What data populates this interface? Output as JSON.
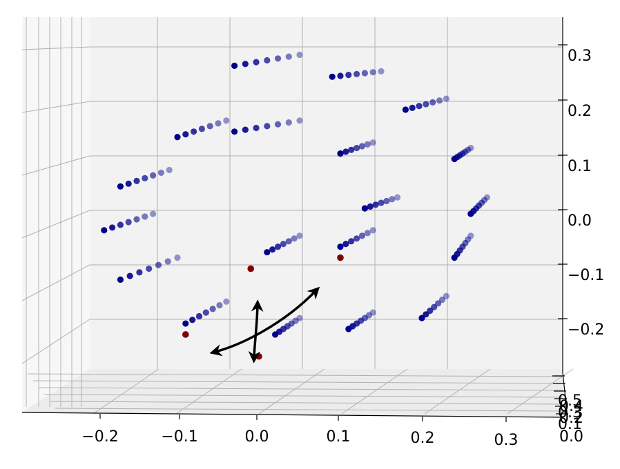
{
  "chart_data": {
    "type": "scatter3d",
    "title": "",
    "xlabel": "",
    "ylabel": "",
    "zlabel": "",
    "grid": true,
    "colors": {
      "points": "#00008b",
      "highlight": "#800000",
      "arrows": "#000000"
    },
    "x_ticks": [
      "−0.2",
      "−0.1",
      "0.0",
      "0.1",
      "0.2",
      "0.3"
    ],
    "z_ticks": [
      "0.3",
      "0.2",
      "0.1",
      "0.0",
      "−0.1",
      "−0.2"
    ],
    "y_ticks": [
      "0.5",
      "0.4",
      "0.3",
      "0.2",
      "0.1",
      "0.0"
    ],
    "point_rows": [
      {
        "start": [
          -0.03,
          0.28
        ],
        "end": [
          0.05,
          0.3
        ]
      },
      {
        "start": [
          0.09,
          0.26
        ],
        "end": [
          0.15,
          0.27
        ]
      },
      {
        "start": [
          0.18,
          0.2
        ],
        "end": [
          0.23,
          0.22
        ]
      },
      {
        "start": [
          -0.1,
          0.15
        ],
        "end": [
          -0.04,
          0.18
        ]
      },
      {
        "start": [
          -0.03,
          0.16
        ],
        "end": [
          0.05,
          0.18
        ]
      },
      {
        "start": [
          0.1,
          0.12
        ],
        "end": [
          0.14,
          0.14
        ]
      },
      {
        "start": [
          0.24,
          0.11
        ],
        "end": [
          0.26,
          0.13
        ]
      },
      {
        "start": [
          -0.17,
          0.06
        ],
        "end": [
          -0.11,
          0.09
        ]
      },
      {
        "start": [
          0.13,
          0.02
        ],
        "end": [
          0.17,
          0.04
        ]
      },
      {
        "start": [
          0.26,
          0.01
        ],
        "end": [
          0.28,
          0.04
        ]
      },
      {
        "start": [
          -0.19,
          -0.02
        ],
        "end": [
          -0.13,
          0.01
        ]
      },
      {
        "start": [
          0.01,
          -0.06
        ],
        "end": [
          0.05,
          -0.03
        ]
      },
      {
        "start": [
          0.1,
          -0.05
        ],
        "end": [
          0.14,
          -0.02
        ]
      },
      {
        "start": [
          0.24,
          -0.07
        ],
        "end": [
          0.26,
          -0.03
        ]
      },
      {
        "start": [
          -0.17,
          -0.11
        ],
        "end": [
          -0.1,
          -0.07
        ]
      },
      {
        "start": [
          0.2,
          -0.18
        ],
        "end": [
          0.23,
          -0.14
        ]
      },
      {
        "start": [
          -0.09,
          -0.19
        ],
        "end": [
          -0.04,
          -0.15
        ]
      },
      {
        "start": [
          0.02,
          -0.21
        ],
        "end": [
          0.05,
          -0.18
        ]
      },
      {
        "start": [
          0.11,
          -0.2
        ],
        "end": [
          0.14,
          -0.17
        ]
      }
    ],
    "highlight_points": [
      [
        -0.09,
        -0.21
      ],
      [
        -0.01,
        -0.09
      ],
      [
        0.0,
        -0.25
      ],
      [
        0.1,
        -0.07
      ]
    ]
  }
}
